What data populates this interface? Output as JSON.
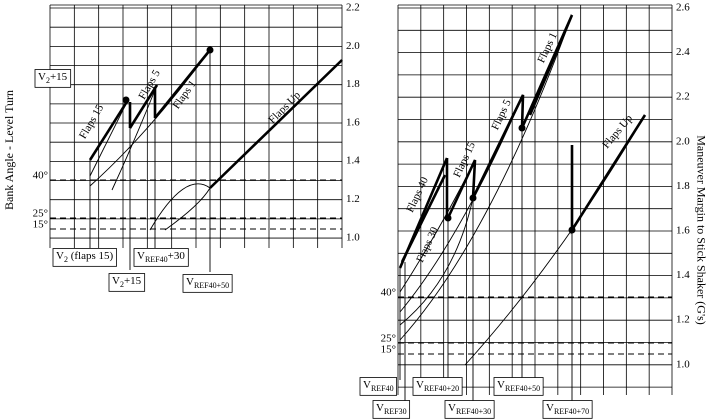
{
  "left_panel": {
    "axis_label": "Bank Angle - Level Turn",
    "right_ticks": [
      "2.2",
      "2.0",
      "1.8",
      "1.6",
      "1.4",
      "1.2",
      "1.0"
    ],
    "bank_ticks": [
      "40°",
      "25°",
      "15°"
    ],
    "curve_labels": [
      "Flaps 15",
      "Flaps 5",
      "Flaps 1",
      "Flaps Up"
    ],
    "speed_labels": [
      {
        "base": "V",
        "sub": "2",
        "suffix": "+15"
      },
      {
        "base": "V",
        "sub": "2",
        "suffix": " (flaps 15)"
      },
      {
        "base": "V",
        "sub": "2",
        "suffix": "+15"
      },
      {
        "base": "V",
        "sub": "REF40",
        "suffix": "+30"
      },
      {
        "base": "V",
        "sub": "REF40+50"
      }
    ]
  },
  "right_panel": {
    "axis_label": "Maneuver Margin to Stick Shaker (G's)",
    "right_ticks": [
      "2.6",
      "2.4",
      "2.2",
      "2.0",
      "1.8",
      "1.6",
      "1.4",
      "1.2",
      "1.0"
    ],
    "bank_ticks": [
      "40°",
      "25°",
      "15°"
    ],
    "curve_labels": [
      "Flaps 40",
      "Flaps 30",
      "Flaps 15",
      "Flaps 5",
      "Flaps 1",
      "Flaps Up"
    ],
    "speed_labels": [
      {
        "base": "V",
        "sub": "REF40"
      },
      {
        "base": "V",
        "sub": "REF30"
      },
      {
        "base": "V",
        "sub": "REF40+20"
      },
      {
        "base": "V",
        "sub": "REF40+30"
      },
      {
        "base": "V",
        "sub": "REF40+50"
      },
      {
        "base": "V",
        "sub": "REF40+70"
      }
    ]
  }
}
